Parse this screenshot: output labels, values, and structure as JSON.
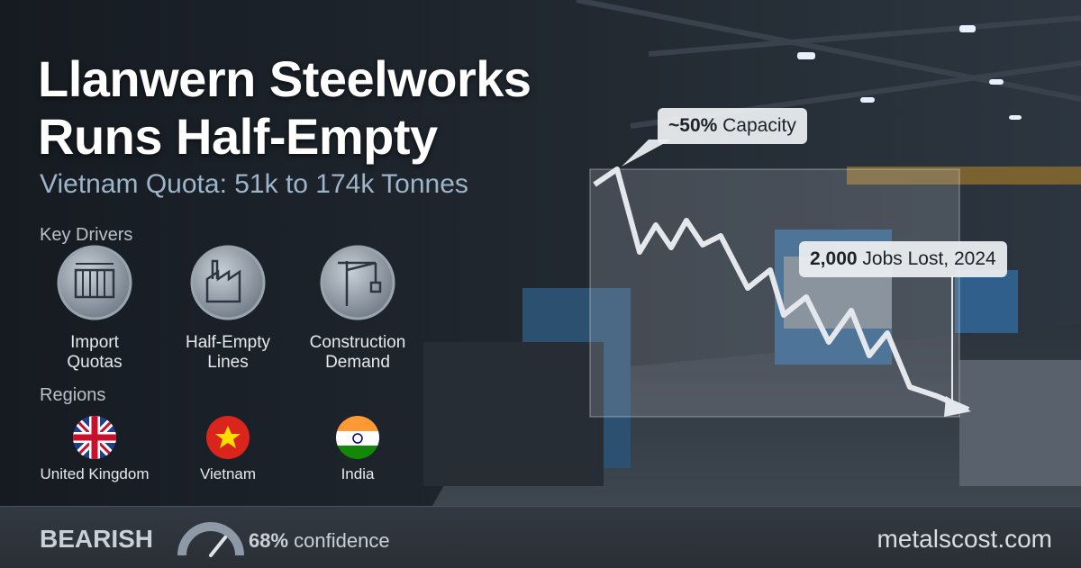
{
  "header": {
    "title_lines": [
      "Llanwern Steelworks",
      "Runs Half-Empty"
    ],
    "subtitle": "Vietnam Quota: 51k to 174k Tonnes"
  },
  "drivers": {
    "heading": "Key Drivers",
    "items": [
      {
        "label_lines": [
          "Import",
          "Quotas"
        ]
      },
      {
        "label_lines": [
          "Half-Empty",
          "Lines"
        ]
      },
      {
        "label_lines": [
          "Construction",
          "Demand"
        ]
      }
    ]
  },
  "regions": {
    "heading": "Regions",
    "items": [
      "United Kingdom",
      "Vietnam",
      "India"
    ]
  },
  "callouts": [
    {
      "strong": "~50%",
      "text": "Capacity"
    },
    {
      "strong": "2,000",
      "text": "Jobs Lost, 2024"
    }
  ],
  "footer": {
    "sentiment": "BEARISH",
    "confidence_strong": "68%",
    "confidence_text": "confidence",
    "site": "metalscost.com"
  }
}
